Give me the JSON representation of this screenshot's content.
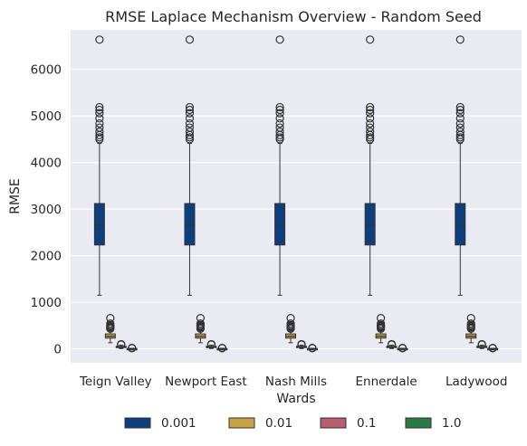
{
  "chart_data": {
    "type": "box",
    "title": "RMSE Laplace Mechanism Overview  - Random Seed",
    "xlabel": "Wards",
    "ylabel": "RMSE",
    "ylim": [
      -300,
      6850
    ],
    "yticks": [
      0,
      1000,
      2000,
      3000,
      4000,
      5000,
      6000
    ],
    "grid": true,
    "background": "#eaeaf2",
    "legend_position": "bottom-center",
    "categories": [
      "Teign Valley",
      "Newport East",
      "Nash Mills",
      "Ennerdale",
      "Ladywood"
    ],
    "series": [
      {
        "name": "0.001",
        "color": "#0f3e7c",
        "box": {
          "whislo": 1150,
          "q1": 2230,
          "med": 2660,
          "q3": 3120,
          "whishi": 4410
        },
        "fliers": [
          4500,
          4540,
          4590,
          4660,
          4750,
          4840,
          4950,
          5060,
          5130,
          5190,
          6640
        ]
      },
      {
        "name": "0.01",
        "color": "#c9a248",
        "box": {
          "whislo": 130,
          "q1": 230,
          "med": 270,
          "q3": 320,
          "whishi": 400
        },
        "fliers": [
          430,
          450,
          470,
          490,
          510,
          540,
          660
        ]
      },
      {
        "name": "0.1",
        "color": "#b5606c",
        "box": {
          "whislo": 5,
          "q1": 30,
          "med": 42,
          "q3": 55,
          "whishi": 80
        },
        "fliers": [
          90,
          100
        ]
      },
      {
        "name": "1.0",
        "color": "#2a7a45",
        "box": {
          "whislo": 0,
          "q1": 2,
          "med": 4,
          "q3": 6,
          "whishi": 10
        },
        "fliers": [
          14,
          18
        ]
      }
    ]
  }
}
